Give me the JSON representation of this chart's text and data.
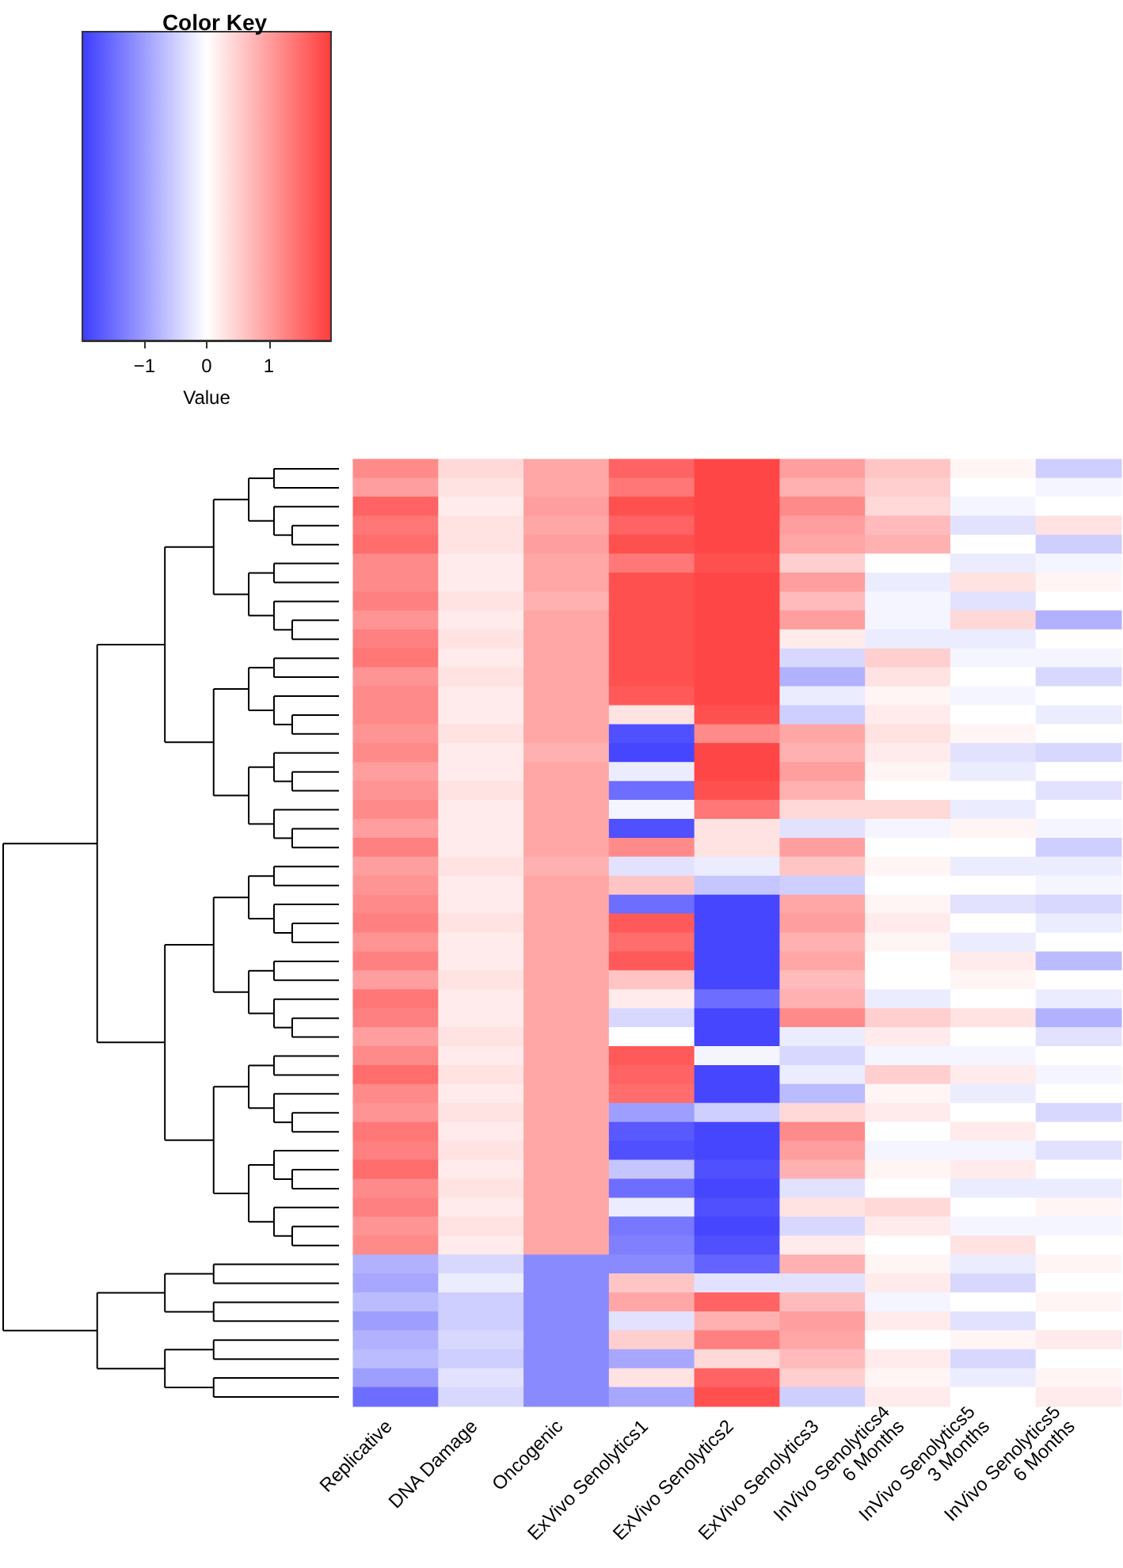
{
  "chart_data": {
    "type": "heatmap",
    "title": "Color Key",
    "clabel": "Value",
    "clim": [
      -2,
      2
    ],
    "cticks": [
      -1,
      0,
      1
    ],
    "tick_labels": "x",
    "categories": [
      "Replicative",
      "DNA Damage",
      "Oncogenic",
      "ExVivo Senolytics1",
      "ExVivo Senolytics2",
      "ExVivo Senolytics3",
      "InVivo Senolytics4\n6 Months",
      "InVivo Senolytics5\n3 Months",
      "InVivo Senolytics5\n6 Months"
    ],
    "y_categories": [
      null,
      null,
      null,
      null,
      null,
      null,
      null,
      null,
      null,
      null,
      null,
      null,
      null,
      null,
      null,
      null,
      null,
      null,
      null,
      null,
      null,
      null,
      null,
      null,
      null,
      null,
      null,
      null,
      null,
      null,
      null,
      null,
      null,
      null,
      null,
      null,
      null,
      null,
      null,
      null,
      null,
      null,
      null,
      null,
      null,
      null,
      null,
      null,
      null,
      null
    ],
    "cells": [
      [
        1.2,
        0.4,
        0.9,
        1.6,
        1.9,
        1.0,
        0.6,
        0.1,
        -0.5
      ],
      [
        1.0,
        0.3,
        0.9,
        1.4,
        1.9,
        0.8,
        0.5,
        0.0,
        -0.1
      ],
      [
        1.6,
        0.2,
        1.0,
        1.8,
        1.9,
        1.2,
        0.4,
        -0.1,
        0.0
      ],
      [
        1.4,
        0.3,
        0.9,
        1.6,
        1.9,
        1.0,
        0.7,
        -0.3,
        0.3
      ],
      [
        1.5,
        0.3,
        1.0,
        1.8,
        1.9,
        0.9,
        0.8,
        0.0,
        -0.5
      ],
      [
        1.2,
        0.2,
        0.9,
        1.4,
        1.8,
        0.5,
        0.0,
        -0.2,
        -0.1
      ],
      [
        1.2,
        0.2,
        0.9,
        1.8,
        1.9,
        1.0,
        -0.2,
        0.3,
        0.1
      ],
      [
        1.3,
        0.3,
        0.8,
        1.8,
        1.9,
        0.7,
        -0.1,
        -0.3,
        0.0
      ],
      [
        1.1,
        0.2,
        0.9,
        1.8,
        1.9,
        1.0,
        -0.1,
        0.4,
        -0.8
      ],
      [
        1.3,
        0.3,
        0.9,
        1.8,
        1.9,
        0.2,
        -0.2,
        -0.2,
        0.0
      ],
      [
        1.4,
        0.2,
        0.9,
        1.8,
        1.9,
        -0.4,
        0.5,
        -0.1,
        -0.1
      ],
      [
        1.1,
        0.3,
        0.9,
        1.8,
        1.9,
        -0.8,
        0.3,
        0.0,
        -0.4
      ],
      [
        1.2,
        0.2,
        0.9,
        1.7,
        1.9,
        -0.2,
        0.1,
        -0.1,
        0.0
      ],
      [
        1.2,
        0.2,
        0.9,
        0.3,
        1.8,
        -0.5,
        0.2,
        0.0,
        -0.2
      ],
      [
        1.1,
        0.3,
        0.9,
        -1.8,
        1.2,
        0.9,
        0.3,
        0.1,
        0.0
      ],
      [
        1.2,
        0.2,
        0.8,
        -1.9,
        1.9,
        0.8,
        0.2,
        -0.3,
        -0.4
      ],
      [
        1.0,
        0.2,
        0.9,
        -0.2,
        1.9,
        1.0,
        0.1,
        -0.2,
        0.0
      ],
      [
        1.1,
        0.3,
        0.9,
        -1.5,
        1.8,
        0.8,
        0.0,
        0.0,
        -0.3
      ],
      [
        1.2,
        0.2,
        0.9,
        -0.1,
        1.4,
        0.4,
        0.4,
        -0.2,
        0.0
      ],
      [
        1.0,
        0.2,
        0.9,
        -1.8,
        0.3,
        -0.3,
        -0.1,
        0.1,
        -0.1
      ],
      [
        1.3,
        0.2,
        0.9,
        1.2,
        0.3,
        1.0,
        0.0,
        0.0,
        -0.5
      ],
      [
        1.0,
        0.3,
        0.8,
        -0.3,
        -0.2,
        0.6,
        0.1,
        -0.2,
        -0.2
      ],
      [
        1.1,
        0.2,
        0.9,
        0.6,
        -0.6,
        -0.5,
        0.0,
        0.0,
        -0.1
      ],
      [
        1.2,
        0.2,
        0.9,
        -1.5,
        -1.9,
        0.9,
        0.1,
        -0.3,
        -0.4
      ],
      [
        1.3,
        0.3,
        0.9,
        1.7,
        -1.9,
        1.0,
        0.2,
        0.0,
        -0.2
      ],
      [
        1.1,
        0.2,
        0.9,
        1.5,
        -1.9,
        0.8,
        0.1,
        -0.2,
        0.0
      ],
      [
        1.3,
        0.2,
        0.9,
        1.7,
        -1.9,
        0.9,
        0.0,
        0.2,
        -0.7
      ],
      [
        1.0,
        0.3,
        0.9,
        0.6,
        -1.9,
        0.7,
        0.0,
        0.1,
        0.0
      ],
      [
        1.4,
        0.2,
        0.9,
        0.2,
        -1.5,
        0.8,
        -0.2,
        0.0,
        -0.2
      ],
      [
        1.3,
        0.2,
        0.9,
        -0.4,
        -1.9,
        1.2,
        0.5,
        0.3,
        -0.8
      ],
      [
        1.0,
        0.3,
        0.9,
        0.0,
        -1.9,
        -0.2,
        0.2,
        0.0,
        -0.3
      ],
      [
        1.2,
        0.2,
        0.9,
        1.7,
        -0.1,
        -0.4,
        -0.1,
        -0.1,
        0.0
      ],
      [
        1.5,
        0.3,
        0.9,
        1.6,
        -1.9,
        -0.2,
        0.5,
        0.2,
        -0.1
      ],
      [
        1.2,
        0.2,
        0.9,
        1.5,
        -1.9,
        -0.7,
        0.1,
        -0.2,
        0.0
      ],
      [
        1.1,
        0.3,
        0.9,
        -1.0,
        -0.5,
        0.4,
        0.2,
        0.0,
        -0.4
      ],
      [
        1.4,
        0.2,
        0.9,
        -1.7,
        -1.9,
        1.2,
        0.0,
        0.2,
        0.0
      ],
      [
        1.3,
        0.3,
        0.9,
        -1.8,
        -1.9,
        1.0,
        -0.1,
        -0.1,
        -0.3
      ],
      [
        1.5,
        0.2,
        0.9,
        -0.6,
        -1.8,
        0.8,
        0.1,
        0.2,
        0.0
      ],
      [
        1.2,
        0.3,
        0.9,
        -1.5,
        -1.9,
        -0.3,
        0.0,
        -0.2,
        -0.2
      ],
      [
        1.3,
        0.2,
        0.9,
        -0.2,
        -1.8,
        0.3,
        0.4,
        0.0,
        0.1
      ],
      [
        1.1,
        0.3,
        0.9,
        -1.4,
        -1.9,
        -0.4,
        0.2,
        -0.1,
        -0.1
      ],
      [
        1.2,
        0.2,
        0.9,
        -1.3,
        -1.8,
        0.2,
        0.0,
        0.3,
        0.0
      ],
      [
        -0.8,
        -0.4,
        -1.2,
        -1.2,
        -1.6,
        0.8,
        0.1,
        -0.2,
        0.1
      ],
      [
        -0.9,
        -0.2,
        -1.2,
        0.6,
        -0.3,
        -0.3,
        0.2,
        -0.4,
        0.0
      ],
      [
        -0.7,
        -0.5,
        -1.2,
        0.9,
        1.6,
        0.7,
        -0.1,
        0.0,
        0.1
      ],
      [
        -1.0,
        -0.5,
        -1.2,
        -0.3,
        0.8,
        1.0,
        0.2,
        -0.3,
        0.0
      ],
      [
        -0.8,
        -0.4,
        -1.2,
        0.5,
        1.3,
        0.9,
        0.0,
        0.1,
        0.2
      ],
      [
        -0.7,
        -0.5,
        -1.2,
        -0.9,
        0.4,
        0.7,
        0.2,
        -0.4,
        0.0
      ],
      [
        -1.0,
        -0.3,
        -1.2,
        0.3,
        1.6,
        0.5,
        0.1,
        -0.2,
        0.1
      ],
      [
        -1.5,
        -0.4,
        -1.2,
        -0.9,
        1.8,
        -0.5,
        0.2,
        0.0,
        0.2
      ]
    ]
  }
}
